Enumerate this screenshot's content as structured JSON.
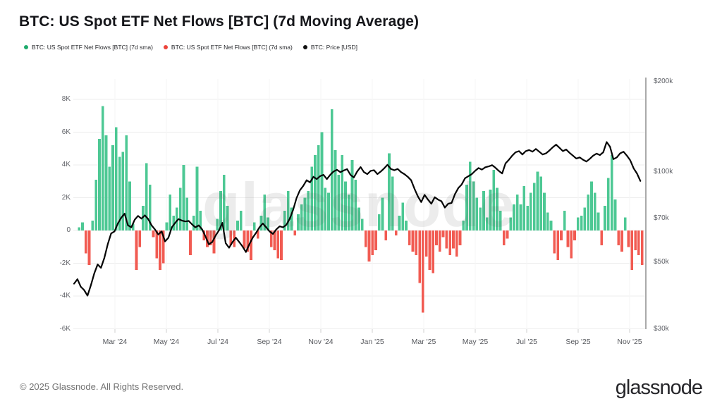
{
  "title": "BTC: US Spot ETF Net Flows [BTC] (7d Moving Average)",
  "legend": {
    "items": [
      {
        "label": "BTC: US Spot ETF Net Flows [BTC] (7d sma)",
        "color": "#1fab6d"
      },
      {
        "label": "BTC: US Spot ETF Net Flows [BTC] (7d sma)",
        "color": "#ec443b"
      },
      {
        "label": "BTC: Price [USD]",
        "color": "#111111"
      }
    ]
  },
  "watermark": "glassnode",
  "footer": {
    "copyright": "© 2025 Glassnode. All Rights Reserved.",
    "brand": "glassnode"
  },
  "chart_data": {
    "type": "bar+line",
    "title": "BTC: US Spot ETF Net Flows [BTC] (7d Moving Average)",
    "start_date": "2024-01-12",
    "end_date": "2025-11-17",
    "sample_interval_days": 4,
    "bar_series_name": "US Spot ETF Net Flows 7d SMA (K BTC)",
    "line_series_name": "BTC Price (USD thousands)",
    "left_axis": {
      "labels": [
        "8K",
        "6K",
        "4K",
        "2K",
        "0",
        "-2K",
        "-4K",
        "-6K"
      ],
      "values": [
        8,
        6,
        4,
        2,
        0,
        -2,
        -4,
        -6
      ],
      "range": [
        -6.6,
        8.6
      ],
      "scale": "linear"
    },
    "right_axis": {
      "labels": [
        "$200k",
        "$100k",
        "$70k",
        "$50k",
        "$30k"
      ],
      "values": [
        200,
        100,
        70,
        50,
        30
      ],
      "range": [
        28,
        205
      ],
      "scale": "log"
    },
    "x_ticks": [
      "Mar '24",
      "May '24",
      "Jul '24",
      "Sep '24",
      "Nov '24",
      "Jan '25",
      "Mar '25",
      "May '25",
      "Jul '25",
      "Sep '25",
      "Nov '25"
    ],
    "grid": true,
    "colors": {
      "positive": "#4dc894",
      "negative": "#f15b52",
      "price": "#050505",
      "gridline": "#ededed",
      "vgridline": "#f5f5f5",
      "axisline": "#8d8d8d",
      "tick": "#cfcfcf"
    },
    "flows": [
      0,
      0.2,
      0.5,
      -1.4,
      -2.1,
      0.6,
      3.1,
      5.6,
      7.6,
      5.8,
      3.9,
      5.2,
      6.3,
      4.5,
      4.8,
      5.8,
      3.0,
      0.4,
      -2.4,
      -1.0,
      1.5,
      4.1,
      2.8,
      -0.4,
      -1.7,
      -2.4,
      -2.0,
      0.5,
      2.2,
      0.9,
      1.4,
      2.6,
      4.0,
      2.0,
      -1.5,
      0.9,
      3.9,
      1.2,
      -0.6,
      -1.0,
      -0.9,
      -1.4,
      0.7,
      2.4,
      3.4,
      1.5,
      -0.9,
      -1.0,
      0.6,
      1.2,
      -1.1,
      -1.3,
      -1.8,
      0.5,
      -0.5,
      0.9,
      2.2,
      0.8,
      -1.0,
      -1.2,
      -1.7,
      -1.8,
      1.2,
      2.4,
      1.4,
      -0.3,
      1.0,
      1.6,
      2.0,
      2.4,
      3.9,
      4.6,
      5.2,
      6.0,
      2.6,
      2.3,
      7.4,
      4.9,
      3.4,
      4.6,
      3.0,
      2.2,
      4.3,
      3.1,
      1.4,
      0.7,
      -1.0,
      -1.9,
      -1.5,
      -1.2,
      1.0,
      2.0,
      -0.6,
      4.7,
      3.3,
      -0.3,
      0.9,
      1.7,
      0.6,
      -0.9,
      -1.3,
      -1.5,
      -3.2,
      -5.0,
      -1.6,
      -2.4,
      -2.6,
      -0.9,
      -1.3,
      -0.4,
      -1.1,
      -1.5,
      -1.1,
      -1.6,
      -0.9,
      0.6,
      2.8,
      4.2,
      3.0,
      2.0,
      1.4,
      2.4,
      0.8,
      2.5,
      3.7,
      2.6,
      1.2,
      -0.9,
      -0.5,
      0.8,
      1.6,
      2.2,
      1.6,
      2.7,
      1.5,
      2.3,
      2.9,
      3.6,
      3.3,
      2.3,
      1.1,
      0.6,
      -1.4,
      -1.8,
      -0.6,
      1.2,
      -1.0,
      -1.7,
      -0.6,
      0.8,
      0.9,
      1.4,
      2.2,
      3.0,
      2.3,
      1.1,
      -0.9,
      1.5,
      3.2,
      4.6,
      1.9,
      -0.9,
      -1.3,
      0.8,
      -1.0,
      -2.4,
      -1.2,
      -1.5,
      -2.1
    ],
    "price_usd_k": [
      42.5,
      44,
      41.5,
      40.5,
      38.8,
      42,
      46,
      49.3,
      48,
      51.8,
      57.5,
      62.5,
      63.5,
      67.5,
      70.5,
      72.8,
      66.5,
      65.5,
      69.5,
      71.5,
      70,
      71.8,
      69.8,
      66.5,
      64.5,
      62,
      63.5,
      58.8,
      60.5,
      65.5,
      67.8,
      69.8,
      69,
      68.5,
      68.8,
      67,
      65.5,
      66.5,
      64.5,
      61,
      57.5,
      58.5,
      61.5,
      64,
      67.8,
      58,
      56,
      58.5,
      60.5,
      58.5,
      56.5,
      54.2,
      57.5,
      60.5,
      62.8,
      65.5,
      67.5,
      65.5,
      63.5,
      62.3,
      64.5,
      66,
      65.5,
      66.8,
      70,
      75,
      82,
      87,
      90,
      94,
      92.5,
      96.5,
      94.8,
      97,
      98,
      94.8,
      98,
      100.5,
      101.8,
      100,
      101.3,
      102.4,
      98,
      96,
      100.5,
      104,
      100,
      98.5,
      101,
      101.5,
      98.5,
      100.5,
      103,
      105.8,
      102.5,
      101.5,
      102.5,
      100,
      98.5,
      96.5,
      94,
      88,
      83,
      79.5,
      84,
      81,
      78.5,
      82.5,
      81,
      80,
      76.2,
      78.5,
      79,
      84.5,
      88.5,
      91,
      95.5,
      97,
      98.5,
      101,
      103.2,
      102,
      103.8,
      104.5,
      105.5,
      103.5,
      101,
      99,
      107,
      110,
      113.5,
      116.5,
      117.5,
      114.5,
      117.5,
      118.5,
      117,
      119.5,
      117,
      114.5,
      115.5,
      118,
      121,
      123.5,
      120.5,
      117.5,
      119,
      116,
      113.5,
      111,
      112,
      110,
      108.5,
      110.8,
      113.5,
      115.3,
      114,
      116.5,
      126,
      121.5,
      110.5,
      112,
      115.5,
      117,
      113.5,
      109.5,
      103,
      99,
      93.5
    ]
  }
}
